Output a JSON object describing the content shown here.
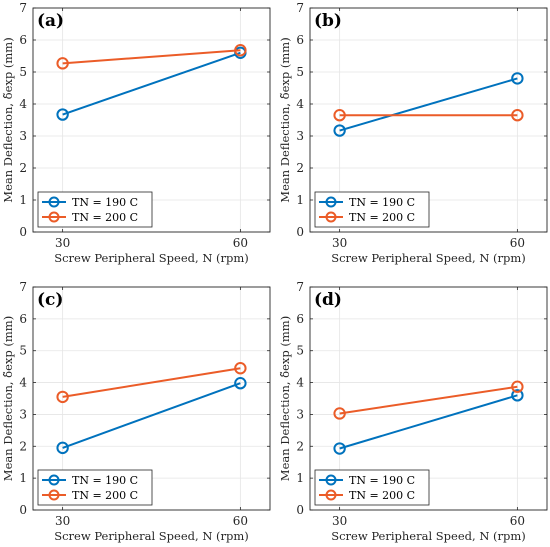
{
  "colors": {
    "blue": "#0072bd",
    "orange": "#eb5c28",
    "grid": "#e5e5e5",
    "axis": "#262626"
  },
  "chart_data": [
    {
      "type": "line",
      "panel_label": "(a)",
      "x": [
        30,
        60
      ],
      "xticks": [
        "30",
        "60"
      ],
      "xlim": [
        25,
        65
      ],
      "ylim": [
        0,
        7
      ],
      "yticks": [
        "0",
        "1",
        "2",
        "3",
        "4",
        "5",
        "6",
        "7"
      ],
      "ylabel": "Mean Deflection, δ̃exp (mm)",
      "xlabel": "Screw Peripheral Speed, N (rpm)",
      "grid": true,
      "legend_position": "bottom-left",
      "series": [
        {
          "name": "TN = 190 C",
          "color": "#0072bd",
          "values": [
            3.67,
            5.6
          ]
        },
        {
          "name": "TN = 200 C",
          "color": "#eb5c28",
          "values": [
            5.27,
            5.68
          ]
        }
      ]
    },
    {
      "type": "line",
      "panel_label": "(b)",
      "x": [
        30,
        60
      ],
      "xticks": [
        "30",
        "60"
      ],
      "xlim": [
        25,
        65
      ],
      "ylim": [
        0,
        7
      ],
      "yticks": [
        "0",
        "1",
        "2",
        "3",
        "4",
        "5",
        "6",
        "7"
      ],
      "ylabel": "Mean Deflection, δ̃exp (mm)",
      "xlabel": "Screw Peripheral Speed, N (rpm)",
      "grid": true,
      "legend_position": "bottom-left",
      "series": [
        {
          "name": "TN = 190 C",
          "color": "#0072bd",
          "values": [
            3.17,
            4.8
          ]
        },
        {
          "name": "TN = 200 C",
          "color": "#eb5c28",
          "values": [
            3.65,
            3.65
          ]
        }
      ]
    },
    {
      "type": "line",
      "panel_label": "(c)",
      "x": [
        30,
        60
      ],
      "xticks": [
        "30",
        "60"
      ],
      "xlim": [
        25,
        65
      ],
      "ylim": [
        0,
        7
      ],
      "yticks": [
        "0",
        "1",
        "2",
        "3",
        "4",
        "5",
        "6",
        "7"
      ],
      "ylabel": "Mean Deflection, δ̃exp (mm)",
      "xlabel": "Screw Peripheral Speed, N (rpm)",
      "grid": true,
      "legend_position": "bottom-left",
      "series": [
        {
          "name": "TN = 190 C",
          "color": "#0072bd",
          "values": [
            1.95,
            3.98
          ]
        },
        {
          "name": "TN = 200 C",
          "color": "#eb5c28",
          "values": [
            3.55,
            4.45
          ]
        }
      ]
    },
    {
      "type": "line",
      "panel_label": "(d)",
      "x": [
        30,
        60
      ],
      "xticks": [
        "30",
        "60"
      ],
      "xlim": [
        25,
        65
      ],
      "ylim": [
        0,
        7
      ],
      "yticks": [
        "0",
        "1",
        "2",
        "3",
        "4",
        "5",
        "6",
        "7"
      ],
      "ylabel": "Mean Deflection, δ̃exp (mm)",
      "xlabel": "Screw Peripheral Speed, N (rpm)",
      "grid": true,
      "legend_position": "bottom-left",
      "series": [
        {
          "name": "TN = 190 C",
          "color": "#0072bd",
          "values": [
            1.93,
            3.6
          ]
        },
        {
          "name": "TN = 200 C",
          "color": "#eb5c28",
          "values": [
            3.03,
            3.87
          ]
        }
      ]
    }
  ]
}
